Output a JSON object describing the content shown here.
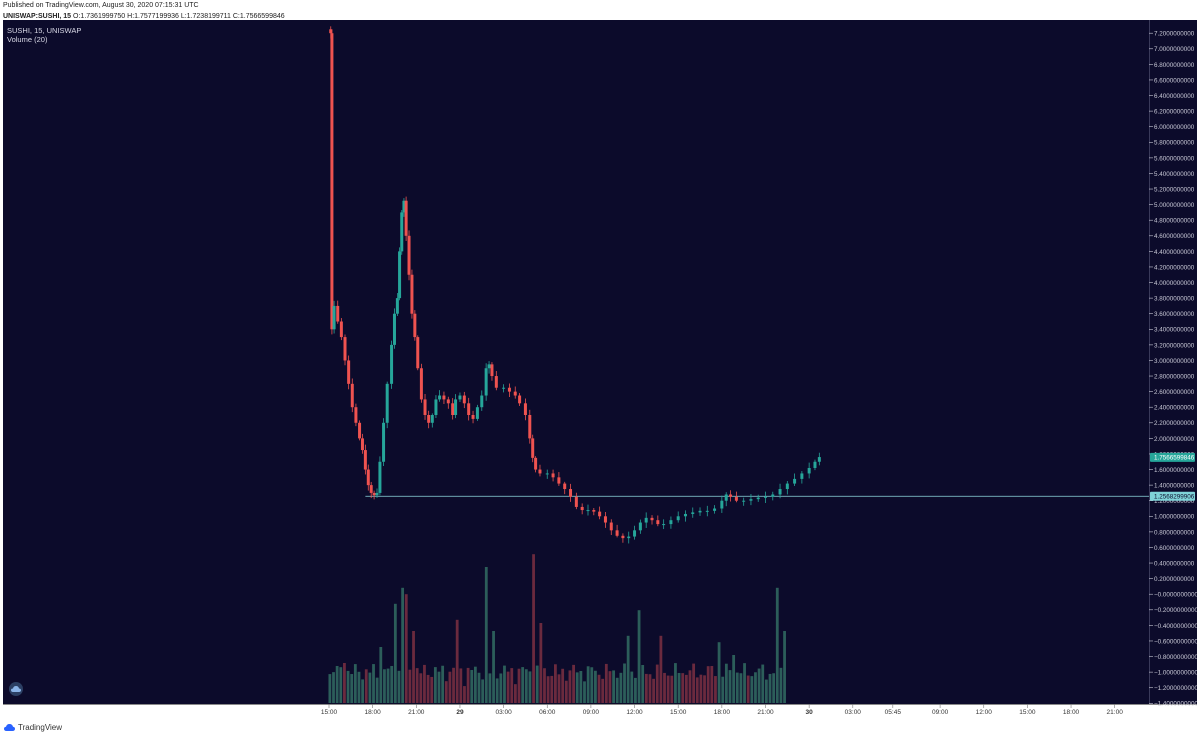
{
  "header": {
    "published": "Published on TradingView.com, August 30, 2020 07:15:31 UTC",
    "symbol_line": "UNISWAP:SUSHI, 15",
    "ohlc": "O:1.7361999750 H:1.7577199936 L:1.7238199711 C:1.7566599846"
  },
  "legend": {
    "title": "SUSHI, 15, UNISWAP",
    "volume": "Volume (20)"
  },
  "footer": {
    "brand": "TradingView"
  },
  "colors": {
    "background": "#0c0b2b",
    "up": "#26a69a",
    "down": "#ef5350",
    "vol_up": "#2c5e5a",
    "vol_down": "#6b2a3e",
    "axis_text": "#c9c9d6",
    "last_price_label": "#26a69a",
    "level_label": "#7fd3d8",
    "level_line": "#8fdbe0"
  },
  "chart_data": {
    "type": "candlestick",
    "price_axis": {
      "min": -1.4,
      "max": 7.2,
      "ticks": [
        "7.2000000000",
        "7.0000000000",
        "6.8000000000",
        "6.6000000000",
        "6.4000000000",
        "6.2000000000",
        "6.0000000000",
        "5.8000000000",
        "5.6000000000",
        "5.4000000000",
        "5.2000000000",
        "5.0000000000",
        "4.8000000000",
        "4.6000000000",
        "4.4000000000",
        "4.2000000000",
        "4.0000000000",
        "3.8000000000",
        "3.6000000000",
        "3.4000000000",
        "3.2000000000",
        "3.0000000000",
        "2.8000000000",
        "2.6000000000",
        "2.4000000000",
        "2.2000000000",
        "2.0000000000",
        "1.8000000000",
        "1.6000000000",
        "1.4000000000",
        "1.2000000000",
        "1.0000000000",
        "0.8000000000",
        "0.6000000000",
        "0.4000000000",
        "0.2000000000",
        "−0.0000000000",
        "−0.2000000000",
        "−0.4000000000",
        "−0.6000000000",
        "−0.8000000000",
        "−1.0000000000",
        "−1.2000000000",
        "−1.4000000000"
      ]
    },
    "time_axis": {
      "ticks": [
        {
          "label": "15:00",
          "hour": 0
        },
        {
          "label": "18:00",
          "hour": 3
        },
        {
          "label": "21:00",
          "hour": 6
        },
        {
          "label": "29",
          "hour": 9,
          "bold": true
        },
        {
          "label": "03:00",
          "hour": 12
        },
        {
          "label": "06:00",
          "hour": 15
        },
        {
          "label": "09:00",
          "hour": 18
        },
        {
          "label": "12:00",
          "hour": 21
        },
        {
          "label": "15:00",
          "hour": 24
        },
        {
          "label": "18:00",
          "hour": 27
        },
        {
          "label": "21:00",
          "hour": 30
        },
        {
          "label": "30",
          "hour": 33,
          "bold": true
        },
        {
          "label": "03:00",
          "hour": 36
        },
        {
          "label": "05:45",
          "hour": 38.75
        },
        {
          "label": "09:00",
          "hour": 42
        },
        {
          "label": "12:00",
          "hour": 45
        },
        {
          "label": "15:00",
          "hour": 48
        },
        {
          "label": "18:00",
          "hour": 51
        },
        {
          "label": "21:00",
          "hour": 54
        }
      ]
    },
    "price_labels": [
      {
        "value": 1.7566599846,
        "text": "1.7566599846",
        "kind": "last"
      },
      {
        "value": 1.2568299906,
        "text": "1.2568299906",
        "kind": "level"
      }
    ],
    "level_line": {
      "value": 1.25683,
      "from_hour": 2.5
    },
    "candle_anchors": [
      [
        0.0,
        7.25
      ],
      [
        0.12,
        7.2
      ],
      [
        0.2,
        3.4
      ],
      [
        0.35,
        3.7
      ],
      [
        0.6,
        3.5
      ],
      [
        0.85,
        3.3
      ],
      [
        1.1,
        3.0
      ],
      [
        1.35,
        2.7
      ],
      [
        1.6,
        2.4
      ],
      [
        1.85,
        2.2
      ],
      [
        2.1,
        2.0
      ],
      [
        2.3,
        1.85
      ],
      [
        2.5,
        1.6
      ],
      [
        2.7,
        1.4
      ],
      [
        2.9,
        1.3
      ],
      [
        3.1,
        1.27
      ],
      [
        3.3,
        1.3
      ],
      [
        3.5,
        1.7
      ],
      [
        3.75,
        2.2
      ],
      [
        4.0,
        2.7
      ],
      [
        4.3,
        3.2
      ],
      [
        4.5,
        3.6
      ],
      [
        4.7,
        3.8
      ],
      [
        4.85,
        4.4
      ],
      [
        5.0,
        4.9
      ],
      [
        5.15,
        5.05
      ],
      [
        5.3,
        4.6
      ],
      [
        5.5,
        4.1
      ],
      [
        5.7,
        3.6
      ],
      [
        5.9,
        3.3
      ],
      [
        6.1,
        2.9
      ],
      [
        6.35,
        2.5
      ],
      [
        6.6,
        2.3
      ],
      [
        6.85,
        2.2
      ],
      [
        7.1,
        2.3
      ],
      [
        7.35,
        2.5
      ],
      [
        7.6,
        2.55
      ],
      [
        7.9,
        2.5
      ],
      [
        8.2,
        2.45
      ],
      [
        8.5,
        2.3
      ],
      [
        8.7,
        2.5
      ],
      [
        9.0,
        2.55
      ],
      [
        9.3,
        2.45
      ],
      [
        9.6,
        2.3
      ],
      [
        9.9,
        2.25
      ],
      [
        10.2,
        2.4
      ],
      [
        10.5,
        2.55
      ],
      [
        10.8,
        2.9
      ],
      [
        11.0,
        2.95
      ],
      [
        11.2,
        2.8
      ],
      [
        11.5,
        2.65
      ],
      [
        12.0,
        2.65
      ],
      [
        12.4,
        2.6
      ],
      [
        12.8,
        2.55
      ],
      [
        13.1,
        2.45
      ],
      [
        13.5,
        2.3
      ],
      [
        13.8,
        2.0
      ],
      [
        14.0,
        1.75
      ],
      [
        14.2,
        1.6
      ],
      [
        14.5,
        1.55
      ],
      [
        15.0,
        1.55
      ],
      [
        15.4,
        1.5
      ],
      [
        15.8,
        1.42
      ],
      [
        16.2,
        1.35
      ],
      [
        16.6,
        1.25
      ],
      [
        17.0,
        1.12
      ],
      [
        17.4,
        1.08
      ],
      [
        17.8,
        1.08
      ],
      [
        18.2,
        1.06
      ],
      [
        18.6,
        1.0
      ],
      [
        19.0,
        0.92
      ],
      [
        19.4,
        0.82
      ],
      [
        19.8,
        0.75
      ],
      [
        20.2,
        0.72
      ],
      [
        20.6,
        0.74
      ],
      [
        21.0,
        0.82
      ],
      [
        21.4,
        0.92
      ],
      [
        21.8,
        0.98
      ],
      [
        22.2,
        0.95
      ],
      [
        22.6,
        0.9
      ],
      [
        23.0,
        0.9
      ],
      [
        23.5,
        0.95
      ],
      [
        24.0,
        1.0
      ],
      [
        24.5,
        1.03
      ],
      [
        25.0,
        1.05
      ],
      [
        25.5,
        1.07
      ],
      [
        26.0,
        1.07
      ],
      [
        26.5,
        1.1
      ],
      [
        27.0,
        1.2
      ],
      [
        27.3,
        1.28
      ],
      [
        27.6,
        1.25
      ],
      [
        28.0,
        1.2
      ],
      [
        28.5,
        1.2
      ],
      [
        29.0,
        1.22
      ],
      [
        29.5,
        1.24
      ],
      [
        30.0,
        1.25
      ],
      [
        30.5,
        1.28
      ],
      [
        31.0,
        1.35
      ],
      [
        31.5,
        1.42
      ],
      [
        32.0,
        1.48
      ],
      [
        32.5,
        1.55
      ],
      [
        33.0,
        1.62
      ],
      [
        33.4,
        1.7
      ],
      [
        33.7,
        1.76
      ]
    ],
    "volume": {
      "bars": 126,
      "peaks": [
        {
          "hour": 1.1,
          "level": 0.25,
          "up": false
        },
        {
          "hour": 3.6,
          "level": 0.35,
          "up": true
        },
        {
          "hour": 4.6,
          "level": 0.62,
          "up": true
        },
        {
          "hour": 5.1,
          "level": 0.72,
          "up": true
        },
        {
          "hour": 5.4,
          "level": 0.68,
          "up": false
        },
        {
          "hour": 5.9,
          "level": 0.45,
          "up": false
        },
        {
          "hour": 8.9,
          "level": 0.52,
          "up": false
        },
        {
          "hour": 10.8,
          "level": 0.85,
          "up": true
        },
        {
          "hour": 11.2,
          "level": 0.45,
          "up": true
        },
        {
          "hour": 14.1,
          "level": 0.93,
          "up": false
        },
        {
          "hour": 14.5,
          "level": 0.5,
          "up": false
        },
        {
          "hour": 20.6,
          "level": 0.42,
          "up": true
        },
        {
          "hour": 21.3,
          "level": 0.58,
          "up": true
        },
        {
          "hour": 22.7,
          "level": 0.42,
          "up": false
        },
        {
          "hour": 26.7,
          "level": 0.38,
          "up": true
        },
        {
          "hour": 27.7,
          "level": 0.3,
          "up": true
        },
        {
          "hour": 30.9,
          "level": 0.72,
          "up": true
        },
        {
          "hour": 31.3,
          "level": 0.45,
          "up": true
        },
        {
          "hour": 33.5,
          "level": 0.58,
          "up": true
        }
      ]
    }
  }
}
